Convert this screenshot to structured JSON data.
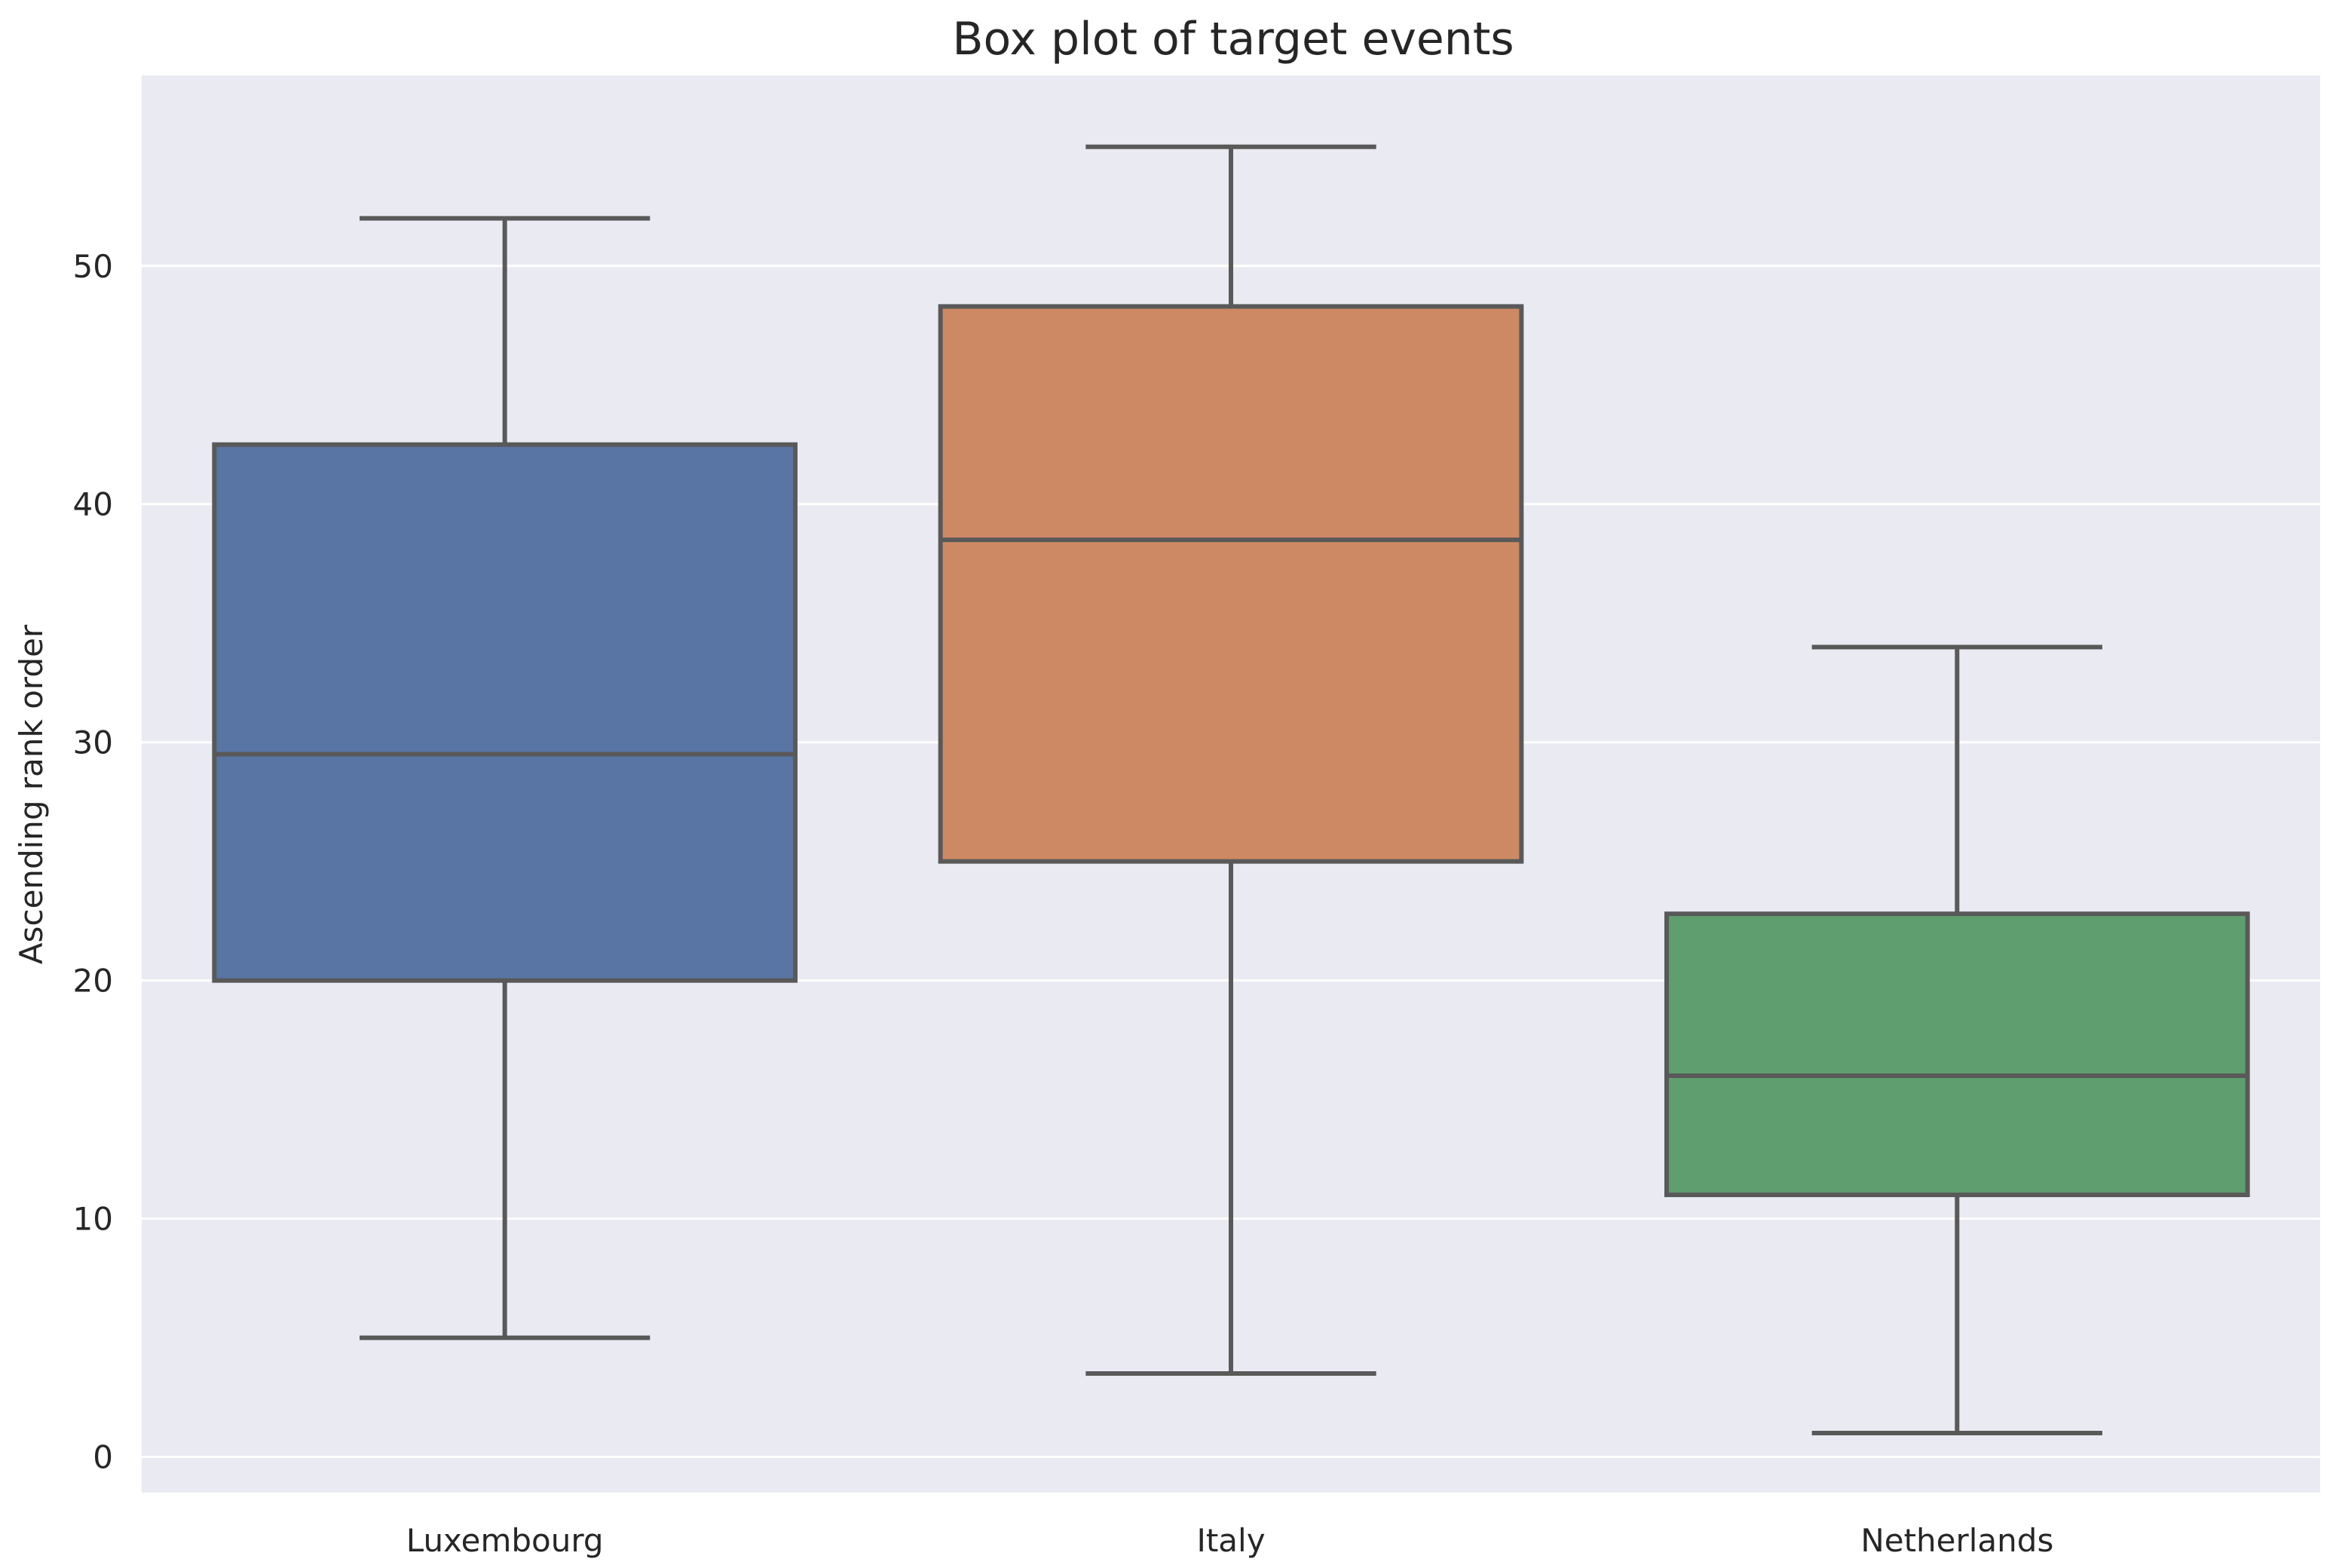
{
  "chart_data": {
    "type": "box",
    "title": "Box plot of target events",
    "xlabel": "",
    "ylabel": "Ascending rank order",
    "categories": [
      "Luxembourg",
      "Italy",
      "Netherlands"
    ],
    "ylim": [
      -1.5,
      58
    ],
    "yticks": [
      0,
      10,
      20,
      30,
      40,
      50
    ],
    "grid": true,
    "legend": "none",
    "boxes": [
      {
        "category": "Luxembourg",
        "whisker_low": 5,
        "q1": 20,
        "median": 29.5,
        "q3": 42.5,
        "whisker_high": 52,
        "color": "#5975a4"
      },
      {
        "category": "Italy",
        "whisker_low": 3.5,
        "q1": 25,
        "median": 38.5,
        "q3": 48.3,
        "whisker_high": 55,
        "color": "#cc8963"
      },
      {
        "category": "Netherlands",
        "whisker_low": 1,
        "q1": 11,
        "median": 16,
        "q3": 22.8,
        "whisker_high": 34,
        "color": "#5f9e6e"
      }
    ]
  },
  "colors": {
    "plot_background": "#eaeaf2",
    "gridline": "#ffffff",
    "box_edge": "#595959"
  }
}
